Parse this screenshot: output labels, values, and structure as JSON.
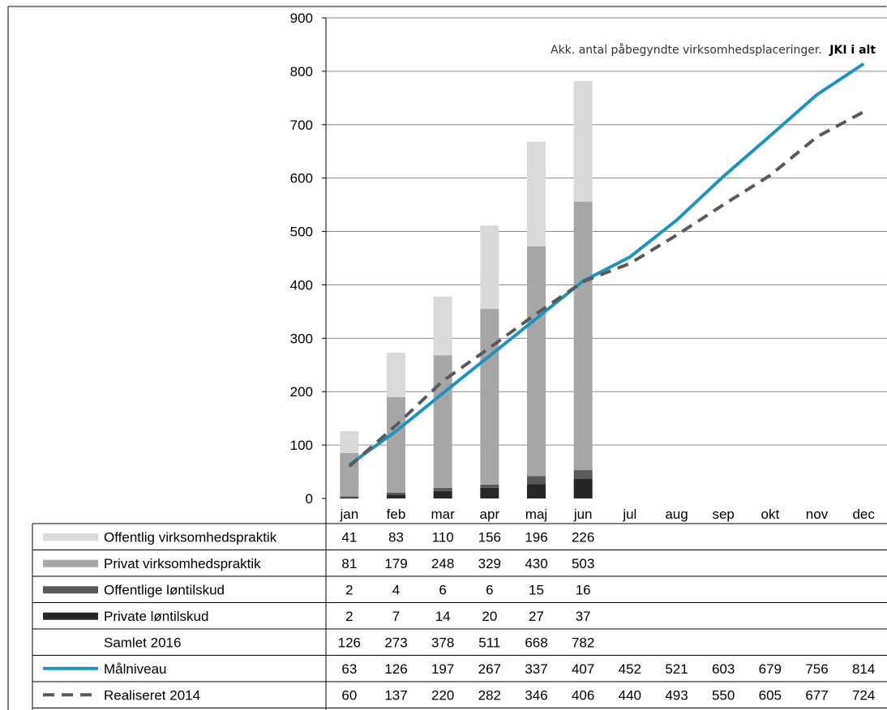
{
  "chart_data": {
    "type": "bar",
    "title": "Akk. antal påbegyndte virksomhedsplaceringer.",
    "title_bold": "JKI i alt",
    "categories": [
      "jan",
      "feb",
      "mar",
      "apr",
      "maj",
      "jun",
      "jul",
      "aug",
      "sep",
      "okt",
      "nov",
      "dec"
    ],
    "ylim": [
      0,
      900
    ],
    "yticks": [
      0,
      100,
      200,
      300,
      400,
      500,
      600,
      700,
      800,
      900
    ],
    "grid": true,
    "stacked": true,
    "series": [
      {
        "name": "Offentlig virksomhedspraktik",
        "kind": "bar",
        "color": "#d9d9d9",
        "values": [
          41,
          83,
          110,
          156,
          196,
          226,
          null,
          null,
          null,
          null,
          null,
          null
        ]
      },
      {
        "name": "Privat virksomhedspraktik",
        "kind": "bar",
        "color": "#a6a6a6",
        "values": [
          81,
          179,
          248,
          329,
          430,
          503,
          null,
          null,
          null,
          null,
          null,
          null
        ]
      },
      {
        "name": "Offentlige løntilskud",
        "kind": "bar",
        "color": "#595959",
        "values": [
          2,
          4,
          6,
          6,
          15,
          16,
          null,
          null,
          null,
          null,
          null,
          null
        ]
      },
      {
        "name": "Private løntilskud",
        "kind": "bar",
        "color": "#262626",
        "values": [
          2,
          7,
          14,
          20,
          27,
          37,
          null,
          null,
          null,
          null,
          null,
          null
        ]
      },
      {
        "name": "Samlet 2016",
        "kind": "none",
        "color": "",
        "values": [
          126,
          273,
          378,
          511,
          668,
          782,
          null,
          null,
          null,
          null,
          null,
          null
        ]
      },
      {
        "name": "Målniveau",
        "kind": "line",
        "color": "#1f93bf",
        "values": [
          63,
          126,
          197,
          267,
          337,
          407,
          452,
          521,
          603,
          679,
          756,
          814
        ]
      },
      {
        "name": "Realiseret 2014",
        "kind": "dashed",
        "color": "#595959",
        "values": [
          60,
          137,
          220,
          282,
          346,
          406,
          440,
          493,
          550,
          605,
          677,
          724
        ]
      }
    ],
    "bar_stack_order": [
      3,
      2,
      1,
      0
    ]
  }
}
